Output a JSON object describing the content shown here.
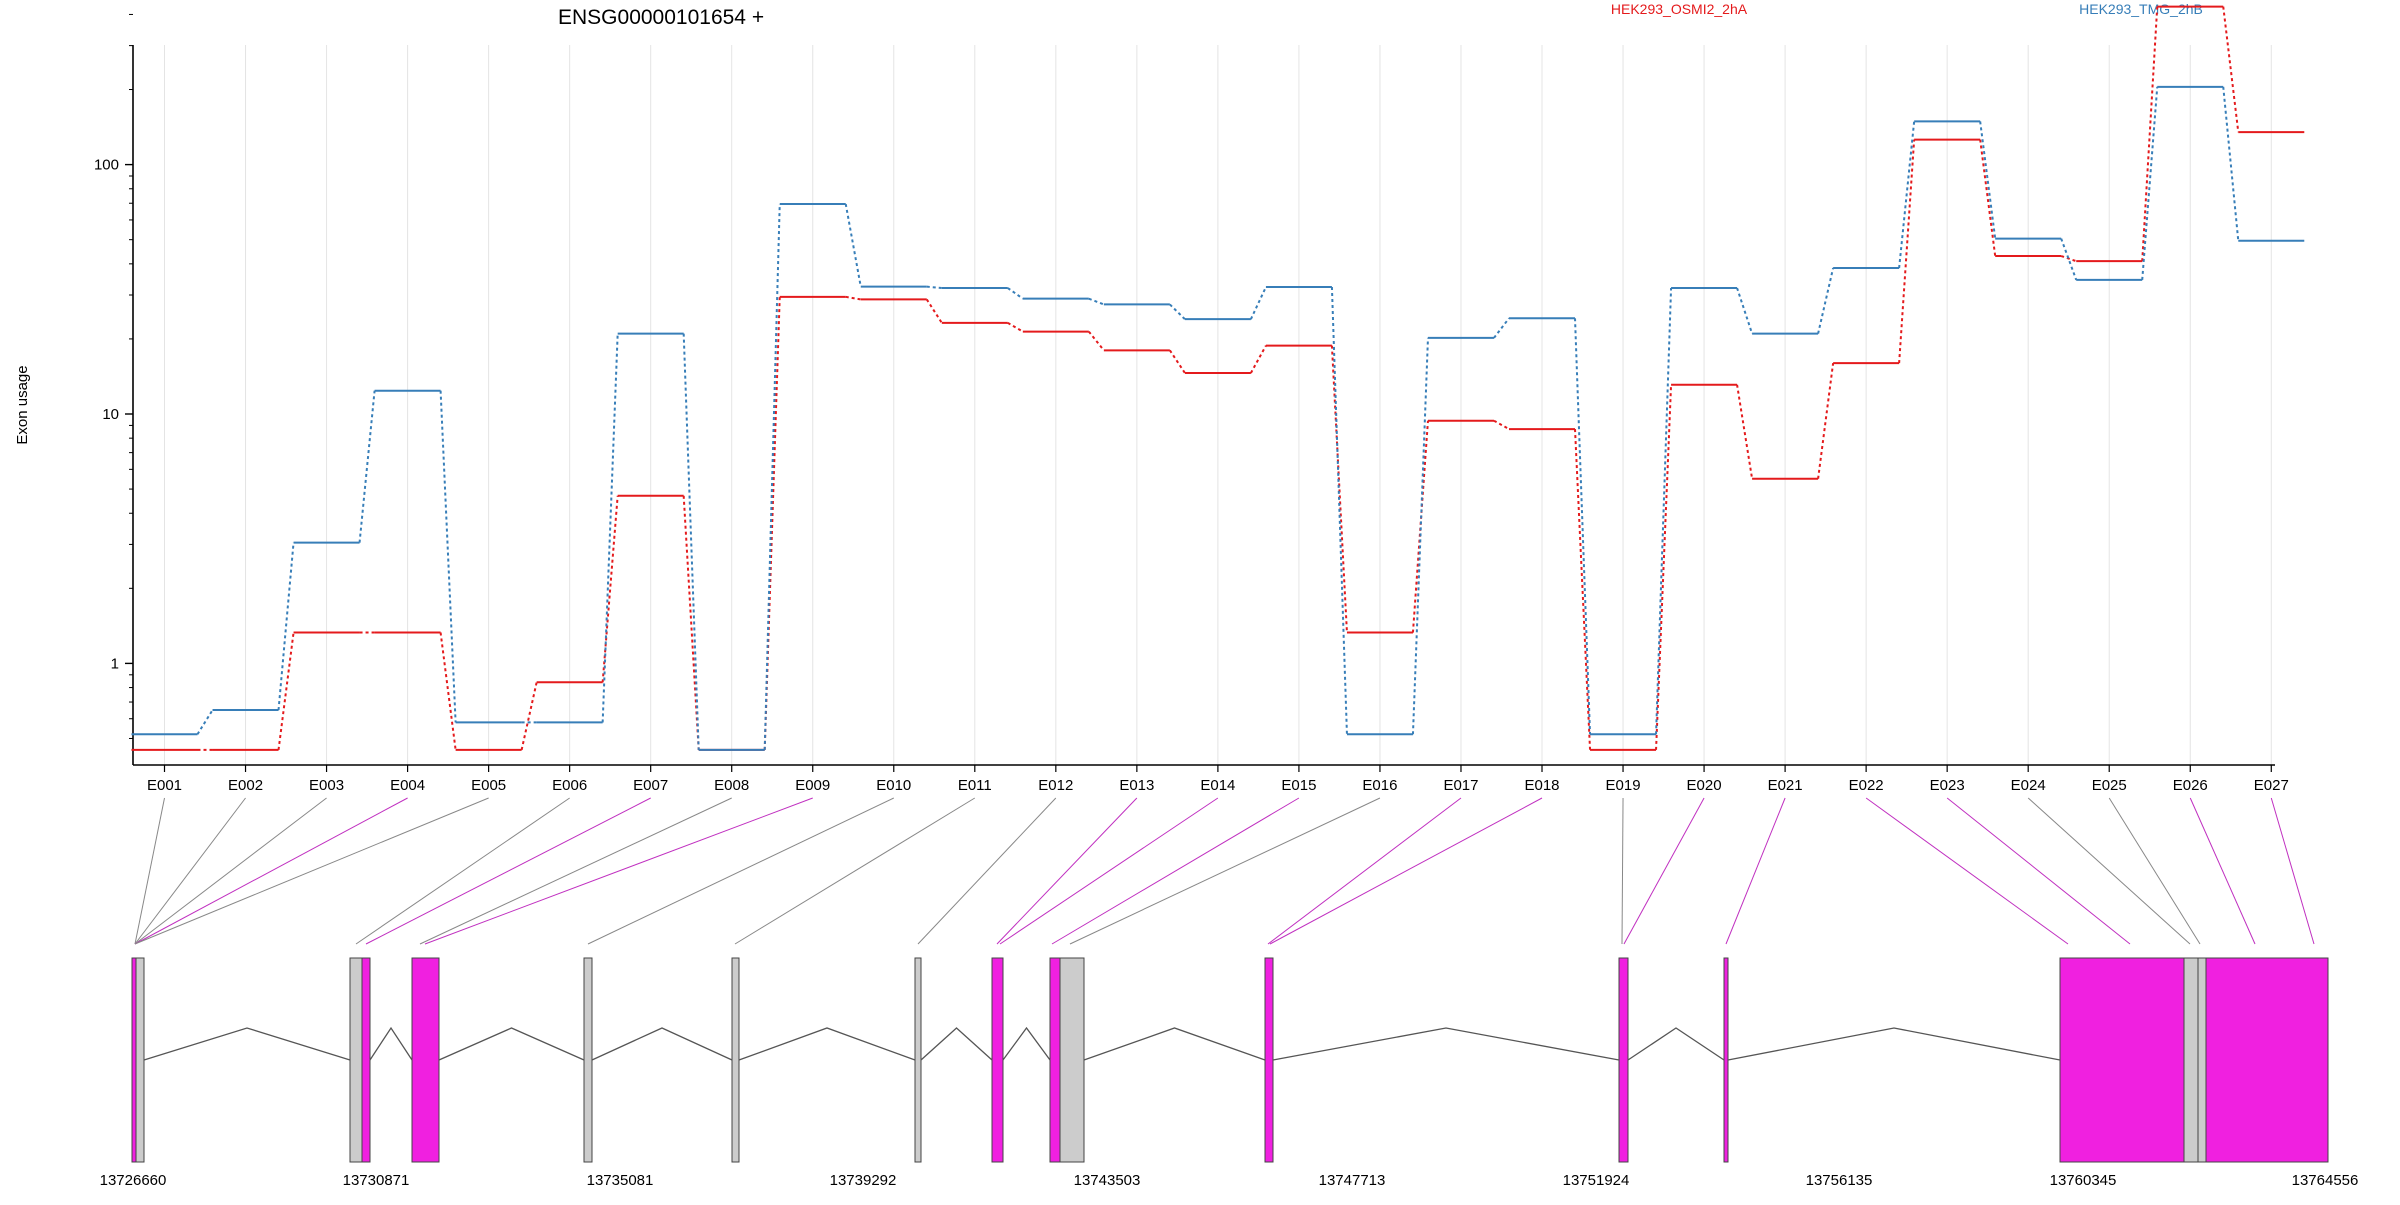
{
  "chart_data": {
    "type": "line",
    "title": "ENSG00000101654 +",
    "ylabel": "Exon usage",
    "xlabel": "",
    "y_scale": "log",
    "ylim": [
      0.45,
      550
    ],
    "y_ticks": [
      "1",
      "10",
      "100"
    ],
    "grid": "vertical",
    "legend_placement": "top",
    "categories": [
      "E001",
      "E002",
      "E003",
      "E004",
      "E005",
      "E006",
      "E007",
      "E008",
      "E009",
      "E010",
      "E011",
      "E012",
      "E013",
      "E014",
      "E015",
      "E016",
      "E017",
      "E018",
      "E019",
      "E020",
      "E021",
      "E022",
      "E023",
      "E024",
      "E025",
      "E026",
      "E027"
    ],
    "series": [
      {
        "name": "HEK293_OSMI2_2hA",
        "color": "#e41a1c",
        "values": [
          0.45,
          0.45,
          1.33,
          1.33,
          0.45,
          0.84,
          4.7,
          0.45,
          29.5,
          28.8,
          23.2,
          21.4,
          18,
          14.6,
          18.8,
          1.33,
          9.4,
          8.7,
          0.45,
          13.1,
          5.5,
          16,
          126,
          43,
          41,
          430,
          135
        ]
      },
      {
        "name": "HEK293_TMG_2hB",
        "color": "#377eb8",
        "values": [
          0.52,
          0.65,
          3.05,
          12.4,
          0.58,
          0.58,
          21,
          0.45,
          69.5,
          32.4,
          32,
          29,
          27.5,
          24,
          32.3,
          0.52,
          20.2,
          24.2,
          0.52,
          32,
          21,
          38.5,
          149,
          50.5,
          34.5,
          205,
          49.5
        ]
      }
    ],
    "gene_model": {
      "coordinate_ticks": [
        "13726660",
        "13730871",
        "13735081",
        "13739292",
        "13743503",
        "13747713",
        "13751924",
        "13756135",
        "13760345",
        "13764556"
      ],
      "highlight_color": "#f020e0",
      "neutral_color": "#cccccc"
    }
  }
}
